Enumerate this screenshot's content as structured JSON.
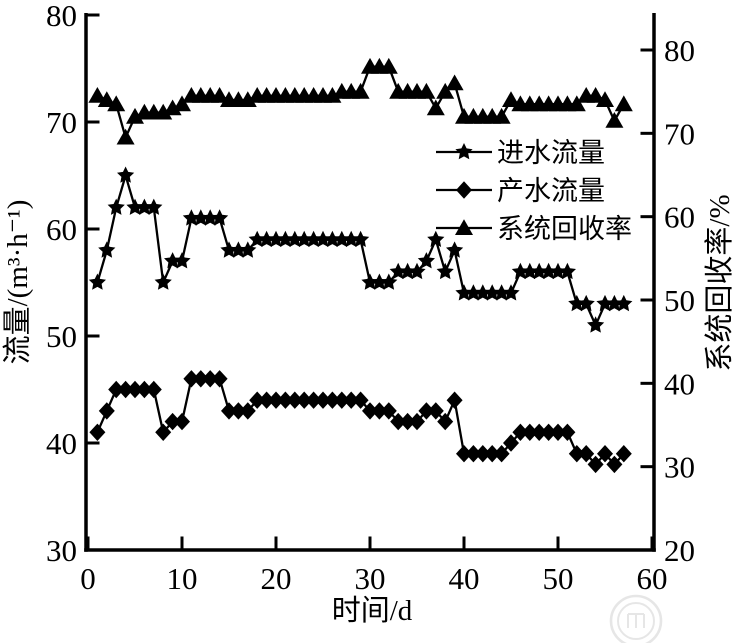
{
  "figure": {
    "background": "#ffffff",
    "ink_color": "#000000",
    "watermark_color": "#d3d3d3"
  },
  "chart_data": {
    "type": "line",
    "title": "",
    "xlabel": "时间/d",
    "ylabel_left": "流量/(m³·h⁻¹)",
    "ylabel_right": "系统回收率/%",
    "xlim": [
      0,
      60
    ],
    "ylim_left": [
      30,
      80
    ],
    "ylim_right": [
      20,
      80
    ],
    "x_ticks": [
      0,
      10,
      20,
      30,
      40,
      50,
      60
    ],
    "left_ticks": [
      30,
      40,
      50,
      60,
      70,
      80
    ],
    "right_ticks": [
      20,
      30,
      40,
      50,
      60,
      70,
      80
    ],
    "grid": false,
    "legend_position": "upper-right-inside",
    "days": [
      1,
      2,
      3,
      4,
      5,
      6,
      7,
      8,
      9,
      10,
      11,
      12,
      13,
      14,
      15,
      16,
      17,
      18,
      19,
      20,
      21,
      22,
      23,
      24,
      25,
      26,
      27,
      28,
      29,
      30,
      31,
      32,
      33,
      34,
      35,
      36,
      37,
      38,
      39,
      40,
      41,
      42,
      43,
      44,
      45,
      46,
      47,
      48,
      49,
      50,
      51,
      52,
      53,
      54,
      55,
      56,
      57
    ],
    "series": [
      {
        "name": "进水流量",
        "id": "influent-flow",
        "axis": "left",
        "marker": "star",
        "values": [
          55,
          58,
          62,
          65,
          62,
          62,
          62,
          55,
          57,
          57,
          61,
          61,
          61,
          61,
          58,
          58,
          58,
          59,
          59,
          59,
          59,
          59,
          59,
          59,
          59,
          59,
          59,
          59,
          59,
          55,
          55,
          55,
          56,
          56,
          56,
          57,
          59,
          56,
          58,
          54,
          54,
          54,
          54,
          54,
          54,
          56,
          56,
          56,
          56,
          56,
          56,
          53,
          53,
          51,
          53,
          53,
          53
        ]
      },
      {
        "name": "产水流量",
        "id": "product-flow",
        "axis": "left",
        "marker": "diamond",
        "values": [
          41,
          43,
          45,
          45,
          45,
          45,
          45,
          41,
          42,
          42,
          46,
          46,
          46,
          46,
          43,
          43,
          43,
          44,
          44,
          44,
          44,
          44,
          44,
          44,
          44,
          44,
          44,
          44,
          44,
          43,
          43,
          43,
          42,
          42,
          42,
          43,
          43,
          42,
          44,
          39,
          39,
          39,
          39,
          39,
          40,
          41,
          41,
          41,
          41,
          41,
          41,
          39,
          39,
          38,
          39,
          38,
          39
        ]
      },
      {
        "name": "系统回收率",
        "id": "system-recovery",
        "axis": "right",
        "marker": "triangle",
        "values": [
          74.5,
          74,
          73.5,
          69.5,
          72,
          72.5,
          72.5,
          72.5,
          73,
          73.5,
          74.5,
          74.5,
          74.5,
          74.5,
          74,
          74,
          74,
          74.5,
          74.5,
          74.5,
          74.5,
          74.5,
          74.5,
          74.5,
          74.5,
          74.5,
          75,
          75,
          75,
          78,
          78,
          78,
          75,
          75,
          75,
          75,
          73,
          75,
          76,
          72,
          72,
          72,
          72,
          72,
          74,
          73.5,
          73.5,
          73.5,
          73.5,
          73.5,
          73.5,
          73.5,
          74.5,
          74.5,
          74,
          71.5,
          73.5
        ]
      }
    ]
  },
  "legend": {
    "items": [
      {
        "label": "进水流量",
        "marker": "star"
      },
      {
        "label": "产水流量",
        "marker": "diamond"
      },
      {
        "label": "系统回收率",
        "marker": "triangle"
      }
    ]
  }
}
